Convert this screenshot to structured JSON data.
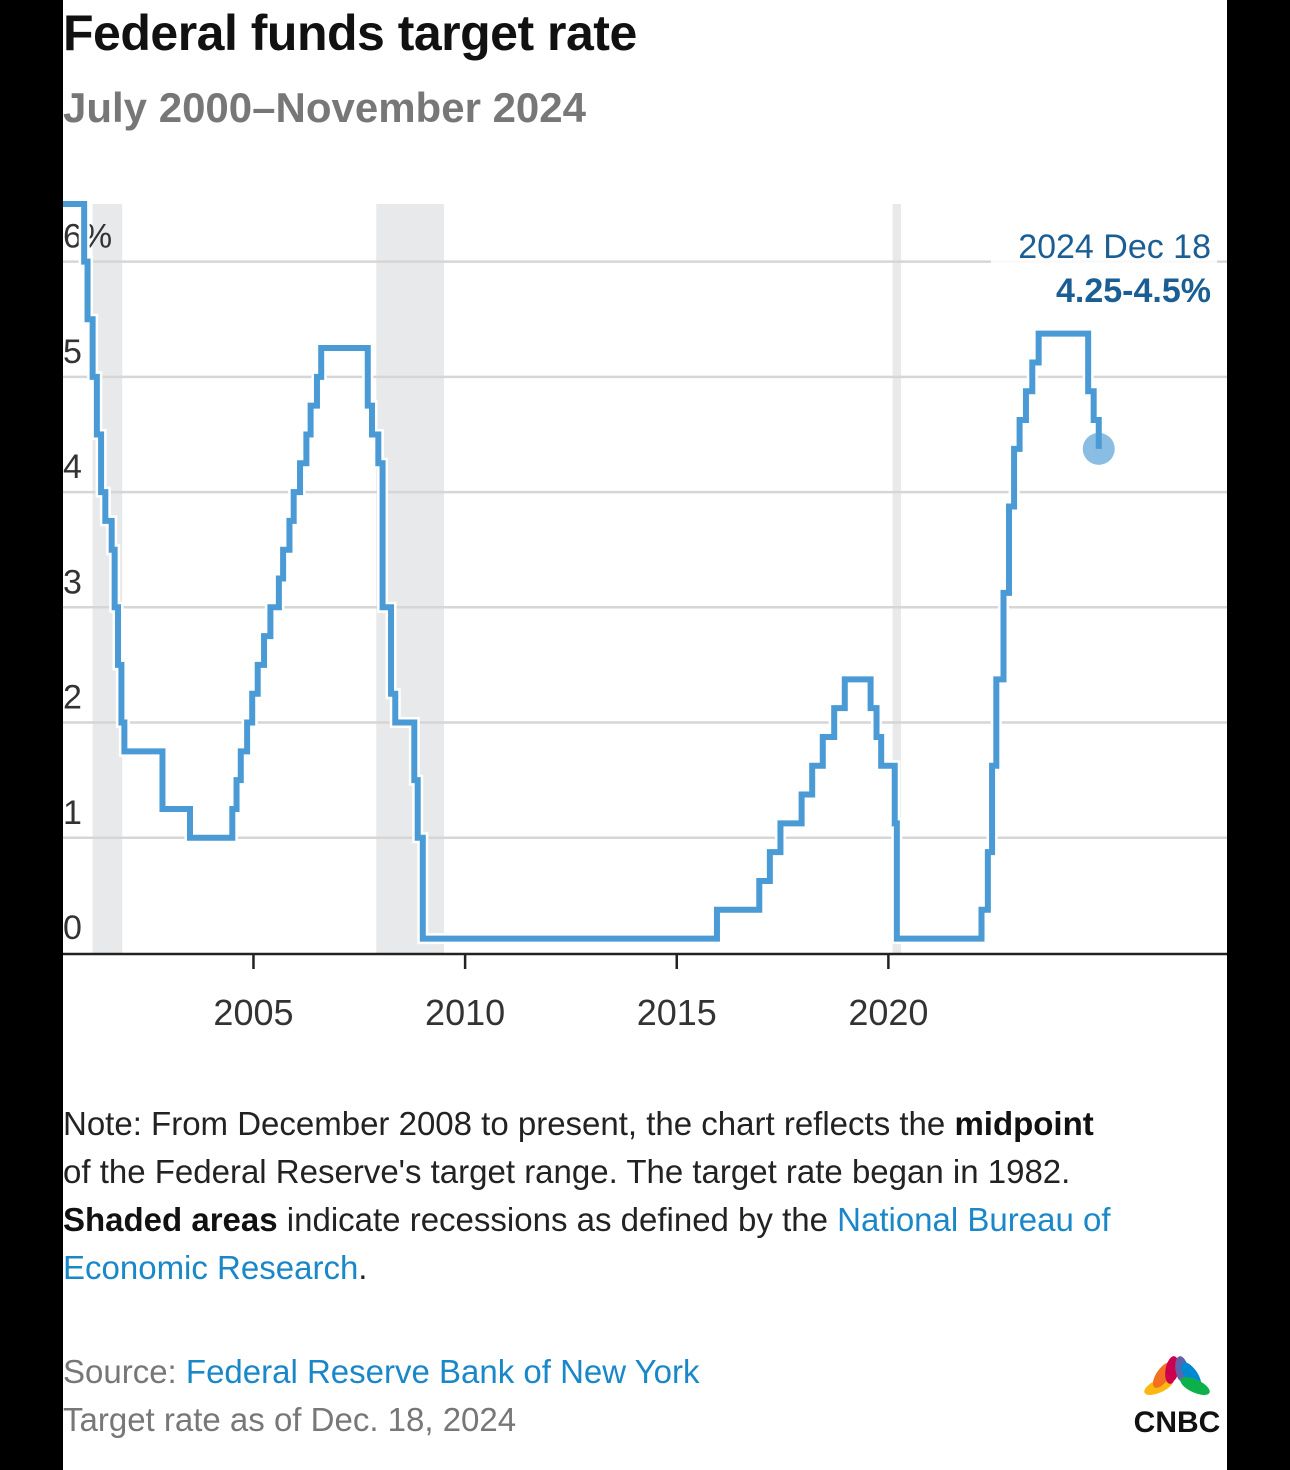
{
  "brand": "CNBC",
  "chart_data": {
    "type": "line",
    "interpolation": "step",
    "title": "Federal funds target rate",
    "subtitle": "July 2000–November 2024",
    "xlabel": "",
    "ylabel": "",
    "xlim": [
      2000.5,
      2028.0
    ],
    "ylim": [
      0,
      6.5
    ],
    "y_ticks": [
      0,
      1,
      2,
      3,
      4,
      5,
      6
    ],
    "y_tick_labels": [
      "0",
      "1",
      "2",
      "3",
      "4",
      "5",
      "6%"
    ],
    "x_ticks": [
      2005,
      2010,
      2015,
      2020
    ],
    "x_tick_labels": [
      "2005",
      "2010",
      "2015",
      "2020"
    ],
    "grid": "horizontal",
    "colors": {
      "line": "#4a9ad6",
      "recession": "#e8e9eb",
      "annotation": "#1b5e94",
      "grid": "#d6d6d6",
      "axis": "#222222"
    },
    "recessions": [
      {
        "start": 2001.2,
        "end": 2001.9
      },
      {
        "start": 2007.9,
        "end": 2009.5
      },
      {
        "start": 2020.1,
        "end": 2020.3
      }
    ],
    "series": [
      {
        "points": [
          [
            2000.5,
            6.5
          ],
          [
            2001.0,
            6.0
          ],
          [
            2001.08,
            5.5
          ],
          [
            2001.2,
            5.0
          ],
          [
            2001.3,
            4.5
          ],
          [
            2001.4,
            4.0
          ],
          [
            2001.5,
            3.75
          ],
          [
            2001.65,
            3.5
          ],
          [
            2001.72,
            3.0
          ],
          [
            2001.8,
            2.5
          ],
          [
            2001.88,
            2.0
          ],
          [
            2001.95,
            1.75
          ],
          [
            2002.85,
            1.25
          ],
          [
            2003.5,
            1.0
          ],
          [
            2004.5,
            1.25
          ],
          [
            2004.6,
            1.5
          ],
          [
            2004.7,
            1.75
          ],
          [
            2004.85,
            2.0
          ],
          [
            2004.97,
            2.25
          ],
          [
            2005.1,
            2.5
          ],
          [
            2005.25,
            2.75
          ],
          [
            2005.4,
            3.0
          ],
          [
            2005.6,
            3.25
          ],
          [
            2005.7,
            3.5
          ],
          [
            2005.85,
            3.75
          ],
          [
            2005.95,
            4.0
          ],
          [
            2006.1,
            4.25
          ],
          [
            2006.25,
            4.5
          ],
          [
            2006.35,
            4.75
          ],
          [
            2006.5,
            5.0
          ],
          [
            2006.6,
            5.25
          ],
          [
            2007.7,
            4.75
          ],
          [
            2007.8,
            4.5
          ],
          [
            2007.95,
            4.25
          ],
          [
            2008.05,
            3.0
          ],
          [
            2008.25,
            2.25
          ],
          [
            2008.35,
            2.0
          ],
          [
            2008.8,
            1.5
          ],
          [
            2008.88,
            1.0
          ],
          [
            2009.0,
            0.125
          ],
          [
            2015.95,
            0.375
          ],
          [
            2016.95,
            0.625
          ],
          [
            2017.2,
            0.875
          ],
          [
            2017.45,
            1.125
          ],
          [
            2017.95,
            1.375
          ],
          [
            2018.2,
            1.625
          ],
          [
            2018.45,
            1.875
          ],
          [
            2018.72,
            2.125
          ],
          [
            2018.97,
            2.375
          ],
          [
            2019.58,
            2.125
          ],
          [
            2019.72,
            1.875
          ],
          [
            2019.83,
            1.625
          ],
          [
            2020.15,
            1.125
          ],
          [
            2020.2,
            0.125
          ],
          [
            2022.2,
            0.375
          ],
          [
            2022.35,
            0.875
          ],
          [
            2022.45,
            1.625
          ],
          [
            2022.55,
            2.375
          ],
          [
            2022.72,
            3.125
          ],
          [
            2022.85,
            3.875
          ],
          [
            2022.97,
            4.375
          ],
          [
            2023.1,
            4.625
          ],
          [
            2023.25,
            4.875
          ],
          [
            2023.4,
            5.125
          ],
          [
            2023.55,
            5.375
          ],
          [
            2024.72,
            4.875
          ],
          [
            2024.85,
            4.625
          ],
          [
            2024.97,
            4.375
          ]
        ]
      }
    ],
    "annotation": {
      "date_label": "2024 Dec 18",
      "value_label": "4.25-4.5%",
      "x": 2024.97,
      "y": 4.375
    }
  },
  "notes": {
    "line1_prefix": "Note: From December 2008 to present, the chart reflects the",
    "line1_bold": "midpoint",
    "line1_rest": " of the Federal Reserve's target range. The target rate began in 1982.",
    "line2_bold": "Shaded areas",
    "line2_text": " indicate recessions as defined by the ",
    "line2_link": "National Bureau of Economic Research",
    "line2_end": "."
  },
  "source": {
    "prefix": "Source: ",
    "link": "Federal Reserve Bank of New York",
    "asof": "Target rate as of Dec. 18, 2024"
  }
}
